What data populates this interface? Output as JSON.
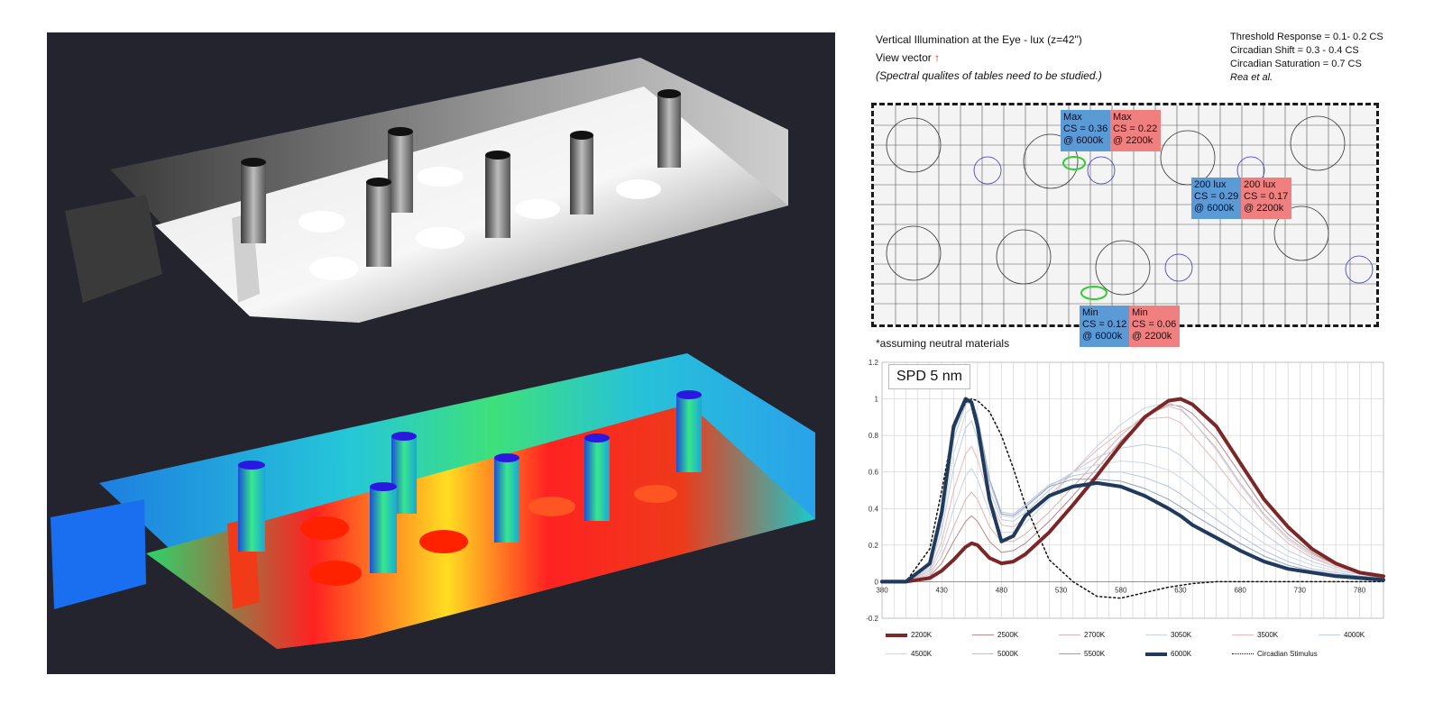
{
  "header": {
    "title": "Vertical Illumination at the Eye - lux (z=42\")",
    "view_vector": "View vector",
    "note": "(Spectral qualites of tables need to be studied.)"
  },
  "references": {
    "threshold": "Threshold Response = 0.1- 0.2 CS",
    "shift": "Circadian Shift  = 0.3 - 0.4 CS",
    "saturation": "Circadian Saturation = 0.7 CS",
    "source": "Rea et al."
  },
  "callouts": {
    "max_blue": {
      "line1": "Max",
      "line2": "CS = 0.36",
      "line3": "@ 6000k"
    },
    "max_red": {
      "line1": "Max",
      "line2": "CS = 0.22",
      "line3": "@ 2200k"
    },
    "mid_blue": {
      "line1": "200 lux",
      "line2": "CS = 0.29",
      "line3": "@ 6000k"
    },
    "mid_red": {
      "line1": "200 lux",
      "line2": "CS = 0.17",
      "line3": "@ 2200k"
    },
    "min_blue": {
      "line1": "Min",
      "line2": "CS = 0.12",
      "line3": "@ 6000k"
    },
    "min_red": {
      "line1": "Min",
      "line2": "CS = 0.06",
      "line3": "@ 2200k"
    }
  },
  "footnote": "*assuming neutral materials",
  "chart_data": {
    "type": "line",
    "title": "SPD 5 nm",
    "xlim": [
      380,
      800
    ],
    "ylim": [
      -0.2,
      1.2
    ],
    "x_ticks": [
      380,
      430,
      480,
      530,
      580,
      630,
      680,
      730,
      780
    ],
    "y_ticks": [
      -0.2,
      0,
      0.2,
      0.4,
      0.6,
      0.8,
      1,
      1.2
    ],
    "x": [
      380,
      400,
      420,
      430,
      440,
      450,
      455,
      460,
      470,
      480,
      490,
      500,
      520,
      540,
      560,
      580,
      600,
      620,
      630,
      640,
      660,
      680,
      700,
      720,
      740,
      760,
      780,
      800
    ],
    "series": [
      {
        "name": "2200K",
        "color": "#7b2727",
        "width": 4,
        "values": [
          0,
          0,
          0.02,
          0.06,
          0.12,
          0.19,
          0.21,
          0.2,
          0.13,
          0.1,
          0.11,
          0.15,
          0.27,
          0.42,
          0.58,
          0.75,
          0.9,
          0.99,
          1.0,
          0.97,
          0.85,
          0.65,
          0.45,
          0.3,
          0.18,
          0.1,
          0.05,
          0.03
        ]
      },
      {
        "name": "2500K",
        "color": "#b88a8a",
        "width": 1,
        "values": [
          0,
          0,
          0.03,
          0.1,
          0.22,
          0.33,
          0.36,
          0.33,
          0.22,
          0.16,
          0.17,
          0.21,
          0.33,
          0.47,
          0.62,
          0.77,
          0.9,
          0.97,
          0.96,
          0.92,
          0.78,
          0.59,
          0.4,
          0.26,
          0.16,
          0.09,
          0.05,
          0.03
        ]
      },
      {
        "name": "2700K",
        "color": "#d8b4b4",
        "width": 1,
        "values": [
          0,
          0,
          0.04,
          0.14,
          0.3,
          0.45,
          0.49,
          0.45,
          0.3,
          0.22,
          0.22,
          0.26,
          0.38,
          0.52,
          0.66,
          0.8,
          0.91,
          0.96,
          0.94,
          0.88,
          0.73,
          0.54,
          0.37,
          0.24,
          0.15,
          0.09,
          0.05,
          0.03
        ]
      },
      {
        "name": "3050K",
        "color": "#c9d2e0",
        "width": 1,
        "values": [
          0,
          0,
          0.05,
          0.18,
          0.4,
          0.58,
          0.62,
          0.56,
          0.38,
          0.27,
          0.27,
          0.32,
          0.45,
          0.6,
          0.74,
          0.86,
          0.95,
          0.98,
          0.95,
          0.88,
          0.72,
          0.53,
          0.36,
          0.23,
          0.14,
          0.08,
          0.05,
          0.03
        ]
      },
      {
        "name": "3500K",
        "color": "#e7b9b9",
        "width": 1,
        "values": [
          0,
          0,
          0.06,
          0.22,
          0.5,
          0.7,
          0.74,
          0.67,
          0.45,
          0.31,
          0.3,
          0.35,
          0.47,
          0.6,
          0.72,
          0.82,
          0.89,
          0.9,
          0.87,
          0.8,
          0.65,
          0.48,
          0.33,
          0.21,
          0.13,
          0.08,
          0.05,
          0.03
        ]
      },
      {
        "name": "4000K",
        "color": "#c0cce0",
        "width": 1,
        "values": [
          0,
          0,
          0.07,
          0.28,
          0.62,
          0.84,
          0.88,
          0.78,
          0.5,
          0.34,
          0.33,
          0.38,
          0.5,
          0.6,
          0.68,
          0.73,
          0.75,
          0.73,
          0.69,
          0.63,
          0.5,
          0.37,
          0.26,
          0.17,
          0.11,
          0.07,
          0.04,
          0.02
        ]
      },
      {
        "name": "4500K",
        "color": "#cfd7e6",
        "width": 1,
        "values": [
          0,
          0,
          0.08,
          0.32,
          0.7,
          0.92,
          0.95,
          0.84,
          0.54,
          0.36,
          0.35,
          0.4,
          0.52,
          0.6,
          0.64,
          0.66,
          0.65,
          0.61,
          0.57,
          0.52,
          0.41,
          0.3,
          0.21,
          0.14,
          0.09,
          0.06,
          0.04,
          0.02
        ]
      },
      {
        "name": "5000K",
        "color": "#b5c3d8",
        "width": 1,
        "values": [
          0,
          0,
          0.09,
          0.35,
          0.78,
          0.97,
          0.99,
          0.88,
          0.56,
          0.38,
          0.37,
          0.42,
          0.53,
          0.58,
          0.6,
          0.6,
          0.57,
          0.52,
          0.48,
          0.43,
          0.34,
          0.25,
          0.17,
          0.11,
          0.07,
          0.05,
          0.03,
          0.02
        ]
      },
      {
        "name": "5500K",
        "color": "#8ea3c2",
        "width": 1,
        "values": [
          0,
          0,
          0.1,
          0.37,
          0.82,
          0.99,
          1.0,
          0.9,
          0.56,
          0.37,
          0.36,
          0.41,
          0.52,
          0.56,
          0.56,
          0.55,
          0.51,
          0.45,
          0.41,
          0.37,
          0.29,
          0.21,
          0.14,
          0.09,
          0.06,
          0.04,
          0.03,
          0.02
        ]
      },
      {
        "name": "6000K",
        "color": "#203a5c",
        "width": 4,
        "values": [
          0,
          0,
          0.1,
          0.38,
          0.85,
          1.0,
          0.98,
          0.85,
          0.45,
          0.22,
          0.25,
          0.36,
          0.47,
          0.52,
          0.54,
          0.52,
          0.47,
          0.4,
          0.36,
          0.31,
          0.24,
          0.17,
          0.11,
          0.07,
          0.05,
          0.03,
          0.02,
          0.01
        ]
      },
      {
        "name": "Circadian Stimulus",
        "color": "#111111",
        "width": 1.5,
        "dash": "2,3",
        "values": [
          0,
          0,
          0.18,
          0.5,
          0.84,
          0.98,
          1.0,
          0.99,
          0.93,
          0.8,
          0.62,
          0.42,
          0.12,
          0.0,
          -0.08,
          -0.09,
          -0.06,
          -0.03,
          -0.02,
          -0.01,
          0,
          0,
          0,
          0,
          0,
          0,
          0,
          0
        ]
      }
    ]
  }
}
